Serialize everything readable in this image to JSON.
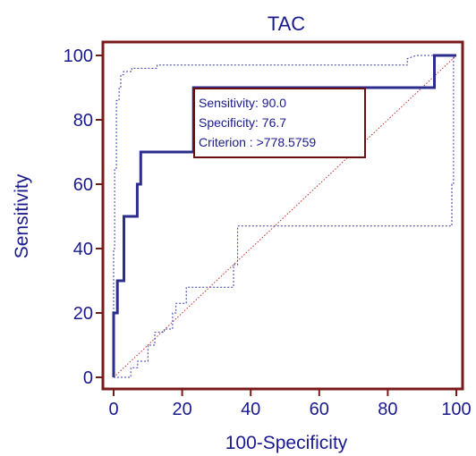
{
  "chart_data": {
    "type": "line",
    "title": "TAC",
    "xlabel": "100-Specificity",
    "ylabel": "Sensitivity",
    "xlim": [
      0,
      100
    ],
    "ylim": [
      0,
      100
    ],
    "x_ticks": [
      0,
      20,
      40,
      60,
      80,
      100
    ],
    "y_ticks": [
      0,
      20,
      40,
      60,
      80,
      100
    ],
    "grid": false,
    "colors": {
      "frame": "#7a1b1b",
      "roc": "#2c2c8c",
      "ci": "#3a3ab0",
      "diagonal": "#c03030",
      "text": "#1a1a8c"
    },
    "series": [
      {
        "role": "roc",
        "style": "solid",
        "x": [
          0,
          0,
          1.1,
          1.1,
          3.0,
          3.0,
          6.9,
          6.9,
          7.9,
          7.9,
          23.3,
          23.3,
          93.6,
          93.6,
          100
        ],
        "y": [
          0,
          20,
          20,
          30,
          30,
          50,
          50,
          60,
          60,
          70,
          70,
          90,
          90,
          100,
          100
        ]
      },
      {
        "role": "ci-upper",
        "style": "dotted",
        "x": [
          0,
          0,
          0.3,
          0.3,
          0.8,
          0.8,
          1.6,
          1.6,
          2.1,
          2.1,
          2.9,
          2.9,
          5.3,
          5.3,
          12.7,
          12.7,
          85.7,
          85.7,
          88.4,
          100
        ],
        "y": [
          0,
          40,
          40,
          65,
          65,
          86,
          86,
          90,
          90,
          94,
          94,
          95,
          95,
          96,
          96,
          97,
          97,
          99,
          100,
          100
        ]
      },
      {
        "role": "ci-lower",
        "style": "dotted",
        "x": [
          0,
          5,
          5,
          7,
          7,
          10,
          10,
          12,
          12,
          14.8,
          14.8,
          17.2,
          17.2,
          18.2,
          18.2,
          21.2,
          21.2,
          35,
          35,
          36.2,
          36.2,
          98.7,
          98.7,
          99.2,
          99.2,
          100
        ],
        "y": [
          0,
          0,
          3,
          3,
          5,
          5,
          10,
          10,
          14,
          14,
          15,
          15,
          20,
          20,
          23,
          23,
          28,
          28,
          35,
          35,
          47,
          47,
          60,
          60,
          100,
          100
        ]
      },
      {
        "role": "diagonal",
        "style": "dotted",
        "x": [
          0,
          100
        ],
        "y": [
          0,
          100
        ]
      }
    ],
    "annotation": {
      "lines": [
        "Sensitivity: 90.0",
        "Specificity: 76.7",
        "Criterion : >778.5759"
      ],
      "anchor": {
        "x": 23.3,
        "y": 90
      }
    }
  }
}
